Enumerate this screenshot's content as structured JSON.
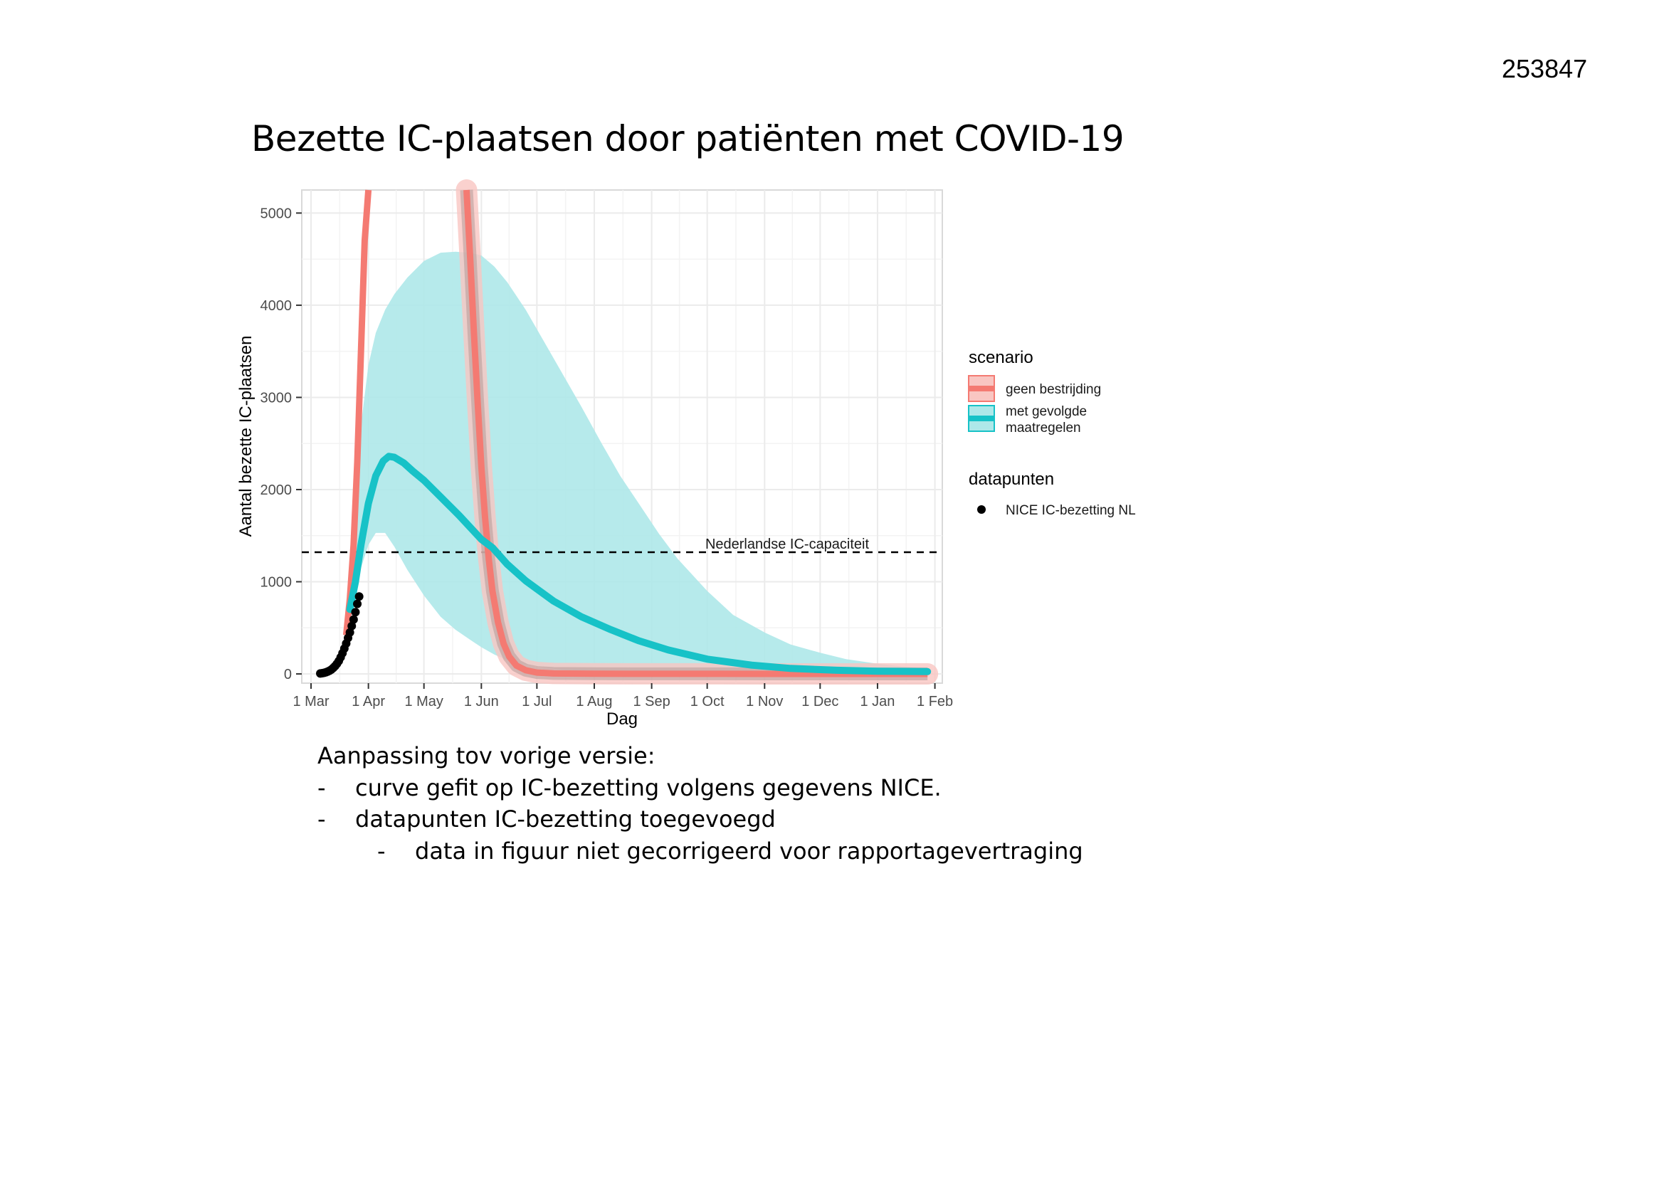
{
  "page": {
    "doc_number": "253847",
    "title": "Bezette IC-plaatsen door patiënten met COVID-19"
  },
  "notes": {
    "heading": "Aanpassing tov vorige versie:",
    "bullet": "-",
    "items": [
      "curve gefit op IC-bezetting volgens gegevens NICE.",
      "datapunten IC-bezetting toegevoegd"
    ],
    "subitem": "data in figuur niet gecorrigeerd voor rapportagevertraging"
  },
  "colors": {
    "geen_bestrijding": "#f47a72",
    "met_gevolgde_maatregelen": "#17c2c7",
    "band_maatregelen": "#aee8e9",
    "band_geen": "#f9c6c2",
    "points": "#000000",
    "grid": "#ebebeb"
  },
  "chart_data": {
    "type": "line",
    "xlabel": "Dag",
    "ylabel": "Aantal bezette IC-plaatsen",
    "x_ticks": [
      "1 Mar",
      "1 Apr",
      "1 May",
      "1 Jun",
      "1 Jul",
      "1 Aug",
      "1 Sep",
      "1 Oct",
      "1 Nov",
      "1 Dec",
      "1 Jan",
      "1 Feb"
    ],
    "y_ticks": [
      0,
      1000,
      2000,
      3000,
      4000,
      5000
    ],
    "ylim": [
      -100,
      5250
    ],
    "xlim_days": [
      -5,
      341
    ],
    "grid": true,
    "legend": {
      "position": "right",
      "groups": [
        {
          "title": "scenario",
          "entries": [
            {
              "key": "geen",
              "label": "geen bestrijding"
            },
            {
              "key": "met",
              "label_lines": [
                "met gevolgde",
                " maatregelen"
              ]
            }
          ]
        },
        {
          "title": "datapunten",
          "entries": [
            {
              "key": "points",
              "label": "NICE IC-bezetting NL"
            }
          ]
        }
      ]
    },
    "annotation": {
      "text": "Nederlandse IC-capaciteit",
      "y": 1210,
      "x_day": 224
    },
    "series": [
      {
        "name": "geen bestrijding",
        "type": "line",
        "x": [
          "2020-03-20",
          "2020-03-22",
          "2020-03-24",
          "2020-03-26",
          "2020-03-28",
          "2020-03-30",
          "2020-04-01"
        ],
        "y": [
          420,
          820,
          1400,
          2300,
          3500,
          4700,
          5300
        ]
      },
      {
        "name": "geen bestrijding",
        "type": "line",
        "x": [
          "2020-05-24",
          "2020-05-26",
          "2020-05-28",
          "2020-05-30",
          "2020-06-01",
          "2020-06-03",
          "2020-06-05",
          "2020-06-07",
          "2020-06-10",
          "2020-06-13",
          "2020-06-16",
          "2020-06-20",
          "2020-06-25",
          "2020-07-01",
          "2020-07-10",
          "2020-08-01",
          "2020-09-01",
          "2020-10-01",
          "2020-11-01",
          "2020-12-01",
          "2021-01-01",
          "2021-01-28"
        ],
        "y": [
          5300,
          4500,
          3700,
          2950,
          2250,
          1700,
          1250,
          900,
          560,
          330,
          190,
          90,
          40,
          15,
          5,
          2,
          1,
          1,
          0,
          0,
          0,
          0
        ]
      },
      {
        "name": "met gevolgde maatregelen",
        "type": "line",
        "x": [
          "2020-03-22",
          "2020-03-25",
          "2020-03-28",
          "2020-04-01",
          "2020-04-05",
          "2020-04-09",
          "2020-04-12",
          "2020-04-15",
          "2020-04-20",
          "2020-04-25",
          "2020-05-01",
          "2020-05-10",
          "2020-05-20",
          "2020-06-01",
          "2020-06-07",
          "2020-06-15",
          "2020-06-25",
          "2020-07-10",
          "2020-07-25",
          "2020-08-10",
          "2020-08-25",
          "2020-09-10",
          "2020-10-01",
          "2020-10-25",
          "2020-11-15",
          "2020-12-10",
          "2021-01-01",
          "2021-01-28"
        ],
        "y": [
          700,
          1000,
          1400,
          1850,
          2150,
          2310,
          2360,
          2350,
          2290,
          2200,
          2100,
          1920,
          1720,
          1460,
          1370,
          1190,
          1010,
          790,
          620,
          480,
          360,
          260,
          160,
          95,
          60,
          40,
          30,
          25
        ]
      }
    ],
    "bands": [
      {
        "name": "met gevolgde maatregelen",
        "x": [
          "2020-03-22",
          "2020-03-25",
          "2020-03-28",
          "2020-04-01",
          "2020-04-05",
          "2020-04-10",
          "2020-04-15",
          "2020-04-22",
          "2020-05-01",
          "2020-05-10",
          "2020-05-18",
          "2020-05-26",
          "2020-06-01",
          "2020-06-08",
          "2020-06-15",
          "2020-06-25",
          "2020-07-05",
          "2020-07-15",
          "2020-07-25",
          "2020-08-05",
          "2020-08-15",
          "2020-08-25",
          "2020-09-05",
          "2020-09-15",
          "2020-10-01",
          "2020-10-15",
          "2020-11-01",
          "2020-11-15",
          "2020-12-01",
          "2020-12-15",
          "2021-01-01",
          "2021-01-15",
          "2021-01-28"
        ],
        "lower": [
          650,
          850,
          1150,
          1400,
          1530,
          1530,
          1380,
          1130,
          850,
          620,
          480,
          370,
          290,
          210,
          150,
          100,
          70,
          45,
          35,
          25,
          20,
          15,
          10,
          8,
          5,
          5,
          5,
          5,
          5,
          5,
          5,
          5,
          5
        ],
        "upper": [
          900,
          1800,
          2700,
          3350,
          3700,
          3950,
          4120,
          4300,
          4480,
          4570,
          4580,
          4570,
          4540,
          4420,
          4250,
          3950,
          3600,
          3250,
          2900,
          2500,
          2150,
          1850,
          1520,
          1250,
          900,
          640,
          450,
          320,
          230,
          160,
          110,
          80,
          60
        ]
      }
    ],
    "points": {
      "name": "NICE IC-bezetting NL",
      "x": [
        "2020-03-06",
        "2020-03-07",
        "2020-03-08",
        "2020-03-09",
        "2020-03-10",
        "2020-03-11",
        "2020-03-12",
        "2020-03-13",
        "2020-03-14",
        "2020-03-15",
        "2020-03-16",
        "2020-03-17",
        "2020-03-18",
        "2020-03-19",
        "2020-03-20",
        "2020-03-21",
        "2020-03-22",
        "2020-03-23",
        "2020-03-24",
        "2020-03-25",
        "2020-03-26",
        "2020-03-27"
      ],
      "y": [
        5,
        8,
        12,
        18,
        25,
        35,
        48,
        65,
        85,
        110,
        140,
        180,
        225,
        275,
        330,
        390,
        450,
        520,
        590,
        670,
        760,
        840
      ]
    }
  }
}
